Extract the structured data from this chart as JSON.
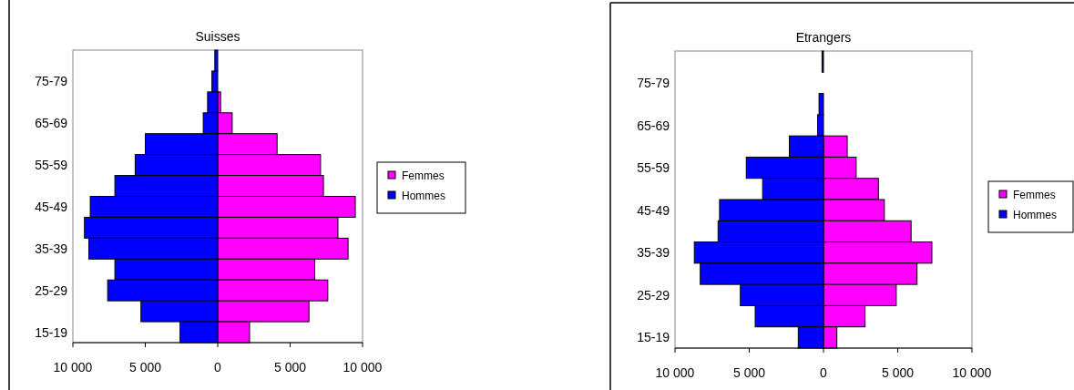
{
  "chart_data": [
    {
      "type": "bar",
      "title": "Suisses",
      "orientation": "horizontal",
      "stacked": true,
      "legend": "right",
      "categories": [
        null,
        "75-79",
        null,
        "65-69",
        null,
        "55-59",
        null,
        "45-49",
        null,
        "35-39",
        null,
        "25-29",
        null,
        "15-19"
      ],
      "series": [
        {
          "name": "Femmes",
          "color": "#ff00ff",
          "values": [
            0,
            0,
            200,
            1000,
            4100,
            7100,
            7300,
            9500,
            8300,
            9000,
            6700,
            7600,
            6300,
            2200
          ]
        },
        {
          "name": "Hommes",
          "color": "#0000ff",
          "values": [
            -200,
            -400,
            -700,
            -1000,
            -5000,
            -5700,
            -7100,
            -8800,
            -9200,
            -8900,
            -7100,
            -7600,
            -5300,
            -2600
          ]
        }
      ],
      "xlim": [
        -10000,
        10000
      ],
      "xticks": [
        {
          "value": -10000,
          "label": "10 000"
        },
        {
          "value": -5000,
          "label": "5 000"
        },
        0,
        {
          "value": 5000,
          "label": "5 000"
        },
        {
          "value": 10000,
          "label": "10 000"
        }
      ]
    },
    {
      "type": "bar",
      "title": "Etrangers",
      "orientation": "horizontal",
      "stacked": true,
      "legend": "right",
      "categories": [
        null,
        "75-79",
        null,
        "65-69",
        null,
        "55-59",
        null,
        "45-49",
        null,
        "35-39",
        null,
        "25-29",
        null,
        "15-19"
      ],
      "series": [
        {
          "name": "Femmes",
          "color": "#ff00ff",
          "values": [
            null,
            0,
            0,
            null,
            1600,
            2200,
            3700,
            4100,
            5900,
            7300,
            6300,
            4900,
            2800,
            900
          ]
        },
        {
          "name": "Hommes",
          "color": "#0000ff",
          "values": [
            -100,
            0,
            -300,
            -400,
            -2300,
            -5200,
            -4100,
            -7000,
            -7100,
            -8700,
            -8300,
            -5600,
            -4600,
            -1700
          ]
        }
      ],
      "xlim": [
        -10000,
        10000
      ],
      "xticks": [
        {
          "value": -10000,
          "label": "10 000"
        },
        {
          "value": -5000,
          "label": "5 000"
        },
        0,
        {
          "value": 5000,
          "label": "5 000"
        },
        {
          "value": 10000,
          "label": "10 000"
        }
      ]
    }
  ]
}
